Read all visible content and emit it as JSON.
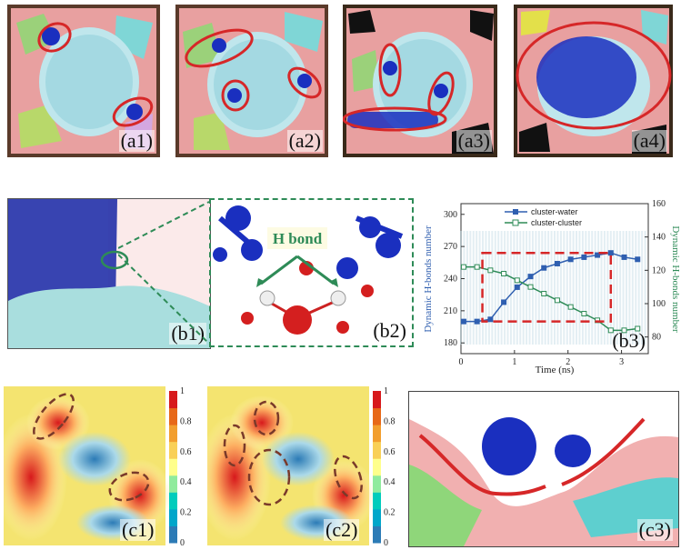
{
  "panels": {
    "a1": "(a1)",
    "a2": "(a2)",
    "a3": "(a3)",
    "a4": "(a4)",
    "b1": "(b1)",
    "b2": "(b2)",
    "b3": "(b3)",
    "c1": "(c1)",
    "c2": "(c2)",
    "c3": "(c3)"
  },
  "b2_annotation": "H bond",
  "colors": {
    "water_series": "#2f5fb0",
    "cluster_series": "#2e8b57",
    "dashed_box": "#d62728",
    "highlight_ellipse": "#d62728"
  },
  "colorbar": {
    "ticks": [
      "0",
      "0.2",
      "0.4",
      "0.6",
      "0.8",
      "1"
    ]
  },
  "chart_data": {
    "type": "line",
    "xlabel": "Time (ns)",
    "ylabel": "Dynamic H-bonds number",
    "y2label": "Dynamic H-bonds number",
    "xlim": [
      0,
      3.5
    ],
    "ylim": [
      170,
      310
    ],
    "y2lim": [
      70,
      160
    ],
    "x_ticks": [
      "0",
      "1",
      "2",
      "3"
    ],
    "y_ticks": [
      "180",
      "210",
      "240",
      "270",
      "300"
    ],
    "y2_ticks": [
      "80",
      "100",
      "120",
      "140",
      "160"
    ],
    "legend_position": "top",
    "series": [
      {
        "name": "cluster-water",
        "axis": "left",
        "x": [
          0.05,
          0.3,
          0.55,
          0.8,
          1.05,
          1.3,
          1.55,
          1.8,
          2.05,
          2.3,
          2.55,
          2.8,
          3.05,
          3.3
        ],
        "values": [
          200,
          200,
          202,
          218,
          232,
          242,
          250,
          254,
          258,
          260,
          262,
          264,
          260,
          258
        ]
      },
      {
        "name": "cluster-cluster",
        "axis": "right",
        "x": [
          0.05,
          0.3,
          0.55,
          0.8,
          1.05,
          1.3,
          1.55,
          1.8,
          2.05,
          2.3,
          2.55,
          2.8,
          3.05,
          3.3
        ],
        "values": [
          122,
          122,
          120,
          118,
          114,
          110,
          106,
          102,
          98,
          94,
          90,
          84,
          84,
          85
        ]
      }
    ]
  }
}
